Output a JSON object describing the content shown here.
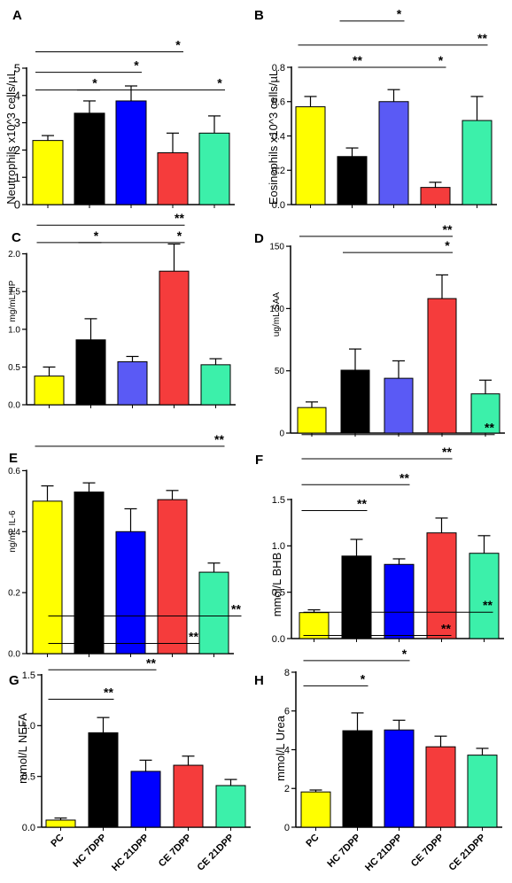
{
  "colors": {
    "PC": "#ffff00",
    "HC 7DPP": "#000000",
    "HC 21DPP": "#0000ff",
    "HC 21DPP light": "#5a5af5",
    "CE 7DPP": "#f53c3c",
    "CE 21DPP": "#3cf0aa"
  },
  "categories": [
    "PC",
    "HC 7DPP",
    "HC 21DPP",
    "CE 7DPP",
    "CE 21DPP"
  ],
  "chart_data": [
    {
      "panel": "A",
      "type": "bar",
      "ylabel": "Neutrophils x10^3 cells/µL",
      "categories": [
        "PC",
        "HC 7DPP",
        "HC 21DPP",
        "CE 7DPP",
        "CE 21DPP"
      ],
      "values": [
        2.35,
        3.35,
        3.8,
        1.9,
        2.62
      ],
      "errors": [
        0.18,
        0.45,
        0.55,
        0.72,
        0.63
      ],
      "ylim": [
        0,
        5
      ],
      "yticks": [
        "0",
        "1",
        "2",
        "3",
        "4",
        "5"
      ],
      "ytick_values": [
        0,
        1,
        2,
        3,
        4,
        5
      ],
      "palette": [
        "PC",
        "HC 7DPP",
        "HC 21DPP",
        "CE 7DPP",
        "CE 21DPP"
      ],
      "xticklabels": false,
      "significance": [
        {
          "from": 0,
          "to": 3,
          "label": "*",
          "y": 5.6
        },
        {
          "from": 0,
          "to": 2,
          "label": "*",
          "y": 4.85
        },
        {
          "from": 0,
          "to": 1,
          "label": "*",
          "y": 4.2
        },
        {
          "from": 1,
          "to": 4,
          "label": "*",
          "y": 4.2
        }
      ]
    },
    {
      "panel": "B",
      "type": "bar",
      "ylabel": "Eosinophils x10^3 cells/µL",
      "categories": [
        "PC",
        "HC 7DPP",
        "HC 21DPP",
        "CE 7DPP",
        "CE 21DPP"
      ],
      "values": [
        0.57,
        0.28,
        0.6,
        0.1,
        0.49
      ],
      "errors": [
        0.06,
        0.05,
        0.07,
        0.03,
        0.14
      ],
      "ylim": [
        0,
        0.8
      ],
      "yticks": [
        "0.0",
        "0.2",
        "0.4",
        "0.6",
        "0.8"
      ],
      "ytick_values": [
        0,
        0.2,
        0.4,
        0.6,
        0.8
      ],
      "palette": [
        "PC",
        "HC 7DPP",
        "HC 21DPP light",
        "CE 7DPP",
        "CE 21DPP"
      ],
      "xticklabels": false,
      "significance": [
        {
          "from": 1,
          "to": 2,
          "label": "*",
          "y": 1.07
        },
        {
          "from": 0,
          "to": 4,
          "label": "**",
          "y": 0.93
        },
        {
          "from": 0,
          "to": 1,
          "label": "**",
          "y": 0.8
        },
        {
          "from": 1,
          "to": 3,
          "label": "*",
          "y": 0.8
        }
      ]
    },
    {
      "panel": "C",
      "type": "bar",
      "ylabel": "mg/mL HP",
      "categories": [
        "PC",
        "HC 7DPP",
        "HC 21DPP",
        "CE 7DPP",
        "CE 21DPP"
      ],
      "values": [
        0.38,
        0.86,
        0.57,
        1.77,
        0.53
      ],
      "errors": [
        0.12,
        0.28,
        0.07,
        0.36,
        0.08
      ],
      "ylim": [
        0,
        2.5
      ],
      "yticks": [
        "0.0",
        "0.5",
        "1.0",
        "1.5",
        "2.0"
      ],
      "ytick_values": [
        0,
        0.5,
        1,
        1.5,
        2
      ],
      "palette": [
        "PC",
        "HC 7DPP",
        "HC 21DPP light",
        "CE 7DPP",
        "CE 21DPP"
      ],
      "xticklabels": false,
      "significance": [
        {
          "from": 0,
          "to": 3,
          "label": "**",
          "y": 2.38
        },
        {
          "from": 0,
          "to": 1,
          "label": "*",
          "y": 2.15
        },
        {
          "from": 1,
          "to": 3,
          "label": "*",
          "y": 2.15
        }
      ]
    },
    {
      "panel": "D",
      "type": "bar",
      "ylabel": "ug/mL SAA",
      "categories": [
        "PC",
        "HC 7DPP",
        "HC 21DPP",
        "CE 7DPP",
        "CE 21DPP"
      ],
      "values": [
        20.5,
        50.5,
        44,
        108,
        31.5
      ],
      "errors": [
        4.5,
        17,
        14,
        19,
        11
      ],
      "ylim": [
        0,
        160
      ],
      "yticks": [
        "0",
        "50",
        "100",
        "150"
      ],
      "ytick_values": [
        0,
        50,
        100,
        150
      ],
      "palette": [
        "PC",
        "HC 7DPP",
        "HC 21DPP light",
        "CE 7DPP",
        "CE 21DPP"
      ],
      "xticklabels": false,
      "significance": [
        {
          "from": 0,
          "to": 3,
          "label": "**",
          "y": 158
        },
        {
          "from": 1,
          "to": 3,
          "label": "*",
          "y": 145
        }
      ]
    },
    {
      "panel": "E",
      "type": "bar",
      "ylabel": "ng/mL IL-6",
      "categories": [
        "PC",
        "HC 7DPP",
        "HC 21DPP",
        "CE 7DPP",
        "CE 21DPP"
      ],
      "values": [
        0.5,
        0.53,
        0.4,
        0.505,
        0.267
      ],
      "errors": [
        0.05,
        0.03,
        0.075,
        0.03,
        0.03
      ],
      "ylim": [
        0,
        0.7
      ],
      "yticks": [
        "0.0",
        "0.2",
        "0.4",
        "0.6"
      ],
      "ytick_values": [
        0,
        0.2,
        0.4,
        0.6
      ],
      "palette": [
        "PC",
        "HC 7DPP",
        "HC 21DPP",
        "CE 7DPP",
        "CE 21DPP"
      ],
      "xticklabels": false,
      "significance": [
        {
          "from": 0,
          "to": 4,
          "label": "**",
          "y": 0.68
        }
      ]
    },
    {
      "panel": "F",
      "type": "bar",
      "ylabel": "mmol/L BHB",
      "categories": [
        "PC",
        "HC 7DPP",
        "HC 21DPP",
        "CE 7DPP",
        "CE 21DPP"
      ],
      "values": [
        0.28,
        0.89,
        0.8,
        1.14,
        0.92
      ],
      "errors": [
        0.03,
        0.18,
        0.06,
        0.16,
        0.19
      ],
      "ylim": [
        0,
        1.5
      ],
      "yticks": [
        "0.0",
        "0.5",
        "1.0",
        "1.5"
      ],
      "ytick_values": [
        0,
        0.5,
        1,
        1.5
      ],
      "palette": [
        "PC",
        "HC 7DPP",
        "HC 21DPP",
        "CE 7DPP",
        "CE 21DPP"
      ],
      "xticklabels": false,
      "significance": [
        {
          "from": 0,
          "to": 4,
          "label": "**",
          "y": 2.2
        },
        {
          "from": 0,
          "to": 3,
          "label": "**",
          "y": 1.94
        },
        {
          "from": 0,
          "to": 2,
          "label": "**",
          "y": 1.66
        },
        {
          "from": 0,
          "to": 1,
          "label": "**",
          "y": 1.38
        }
      ]
    },
    {
      "panel": "G",
      "type": "bar",
      "ylabel": "mmol/L NEFA",
      "categories": [
        "PC",
        "HC 7DPP",
        "HC 21DPP",
        "CE 7DPP",
        "CE 21DPP"
      ],
      "values": [
        0.07,
        0.93,
        0.55,
        0.61,
        0.41
      ],
      "errors": [
        0.02,
        0.15,
        0.11,
        0.09,
        0.06
      ],
      "ylim": [
        0,
        1.5
      ],
      "yticks": [
        "0.0",
        "0.5",
        "1.0",
        "1.5"
      ],
      "ytick_values": [
        0,
        0.5,
        1,
        1.5
      ],
      "palette": [
        "PC",
        "HC 7DPP",
        "HC 21DPP",
        "CE 7DPP",
        "CE 21DPP"
      ],
      "xticklabels": true,
      "significance": [
        {
          "from": 0,
          "to": 4,
          "label": "**",
          "y": 2.08
        },
        {
          "from": 0,
          "to": 3,
          "label": "**",
          "y": 1.81
        },
        {
          "from": 0,
          "to": 2,
          "label": "**",
          "y": 1.55
        },
        {
          "from": 0,
          "to": 1,
          "label": "**",
          "y": 1.26
        }
      ]
    },
    {
      "panel": "H",
      "type": "bar",
      "ylabel": "mmol/L Urea",
      "categories": [
        "PC",
        "HC 7DPP",
        "HC 21DPP",
        "CE 7DPP",
        "CE 21DPP"
      ],
      "values": [
        1.82,
        4.98,
        5.02,
        4.15,
        3.72
      ],
      "errors": [
        0.1,
        0.92,
        0.5,
        0.55,
        0.35
      ],
      "ylim": [
        0,
        8
      ],
      "yticks": [
        "0",
        "2",
        "4",
        "6",
        "8"
      ],
      "ytick_values": [
        0,
        2,
        4,
        6,
        8
      ],
      "palette": [
        "PC",
        "HC 7DPP",
        "HC 21DPP",
        "CE 7DPP",
        "CE 21DPP"
      ],
      "xticklabels": true,
      "significance": [
        {
          "from": 0,
          "to": 4,
          "label": "**",
          "y": 11.1
        },
        {
          "from": 0,
          "to": 3,
          "label": "**",
          "y": 9.9
        },
        {
          "from": 0,
          "to": 2,
          "label": "*",
          "y": 8.6
        },
        {
          "from": 0,
          "to": 1,
          "label": "*",
          "y": 7.3
        }
      ]
    }
  ]
}
